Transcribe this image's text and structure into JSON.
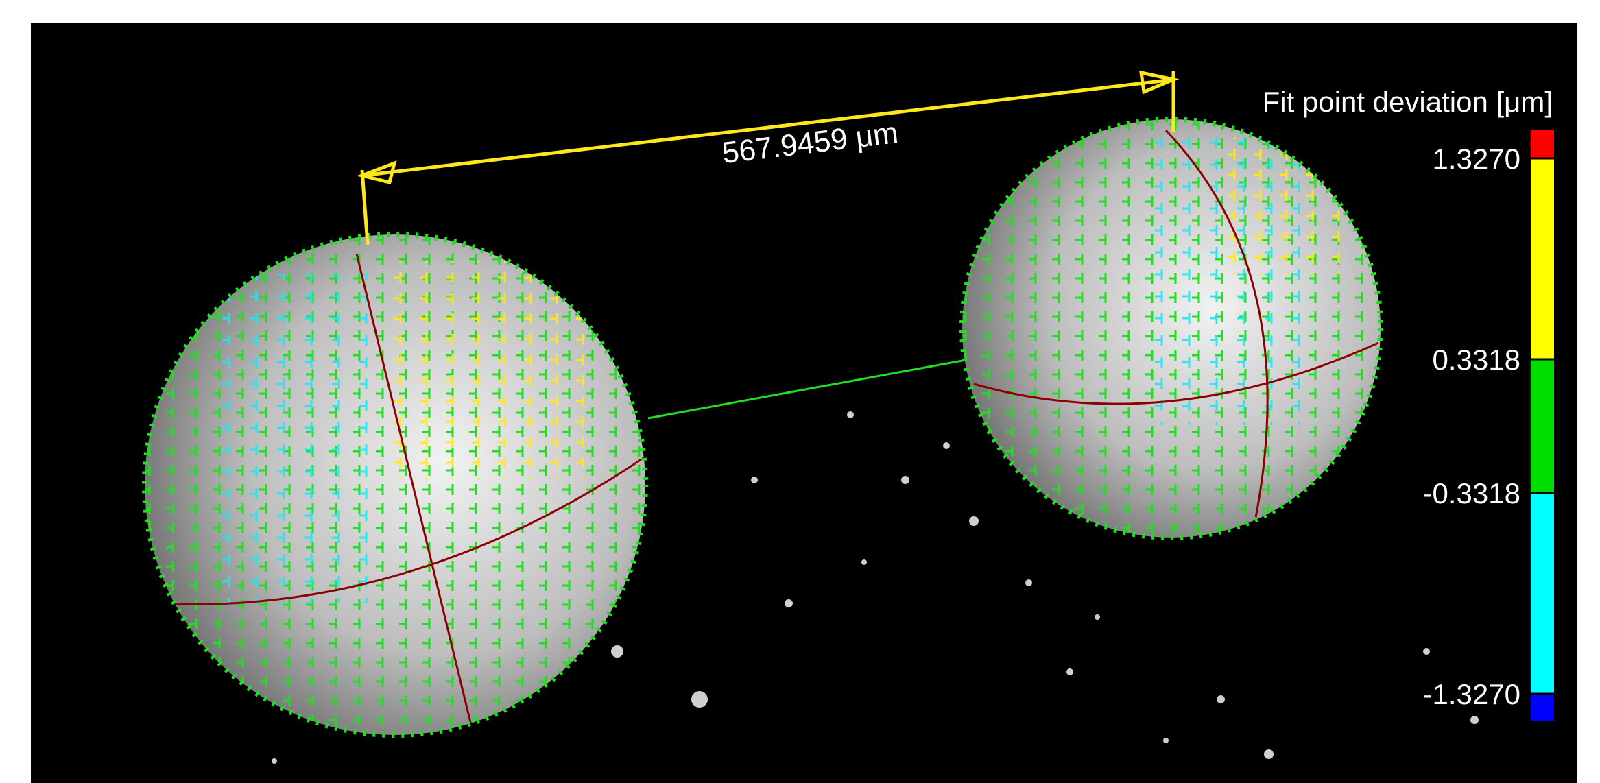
{
  "measurement": {
    "label": "567.9459 μm"
  },
  "legend": {
    "title": "Fit point deviation [μm]",
    "ticks": [
      "1.3270",
      "0.3318",
      "-0.3318",
      "-1.3270"
    ]
  }
}
